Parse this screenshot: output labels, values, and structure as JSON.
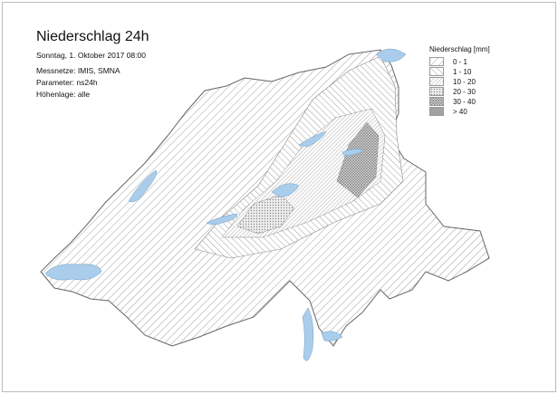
{
  "header": {
    "title": "Niederschlag 24h",
    "date": "Sonntag, 1. Oktober 2017 08:00",
    "networks": "Messnetze: IMIS, SMNA",
    "parameter": "Parameter: ns24h",
    "elevation": "Höhenlage: alle"
  },
  "legend": {
    "title": "Niederschlag [mm]",
    "classes": [
      {
        "label": "0 - 1",
        "pattern": "p0"
      },
      {
        "label": "1 - 10",
        "pattern": "p1"
      },
      {
        "label": "10 - 20",
        "pattern": "p2"
      },
      {
        "label": "20 - 30",
        "pattern": "p3"
      },
      {
        "label": "30 - 40",
        "pattern": "p4"
      },
      {
        "label": "> 40",
        "pattern": "p5"
      }
    ]
  },
  "colors": {
    "lake": "#a9cdea",
    "outline": "#666666",
    "hatch": "#888888"
  }
}
